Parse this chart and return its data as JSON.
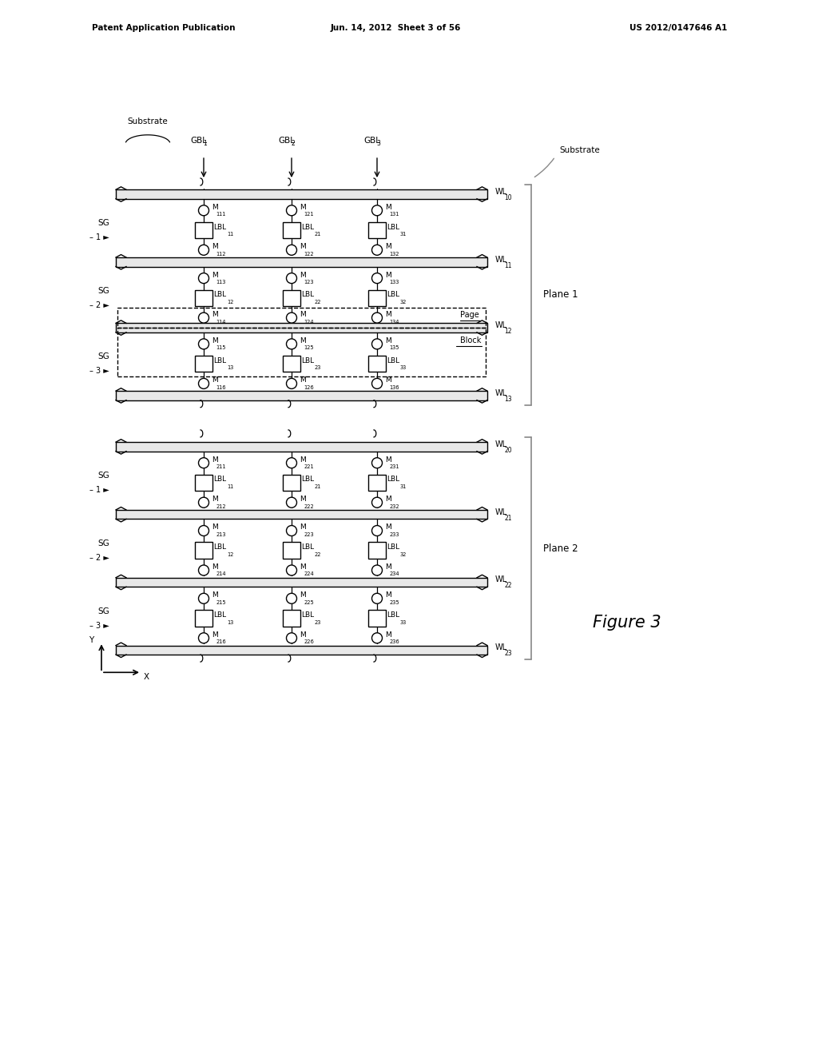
{
  "bg_color": "#ffffff",
  "header_left": "Patent Application Publication",
  "header_center": "Jun. 14, 2012  Sheet 3 of 56",
  "header_right": "US 2012/0147646 A1",
  "figure_label": "Figure 3",
  "plane1_label": "Plane 1",
  "plane2_label": "Plane 2",
  "substrate_label": "Substrate",
  "substrate_label2": "Substrate"
}
